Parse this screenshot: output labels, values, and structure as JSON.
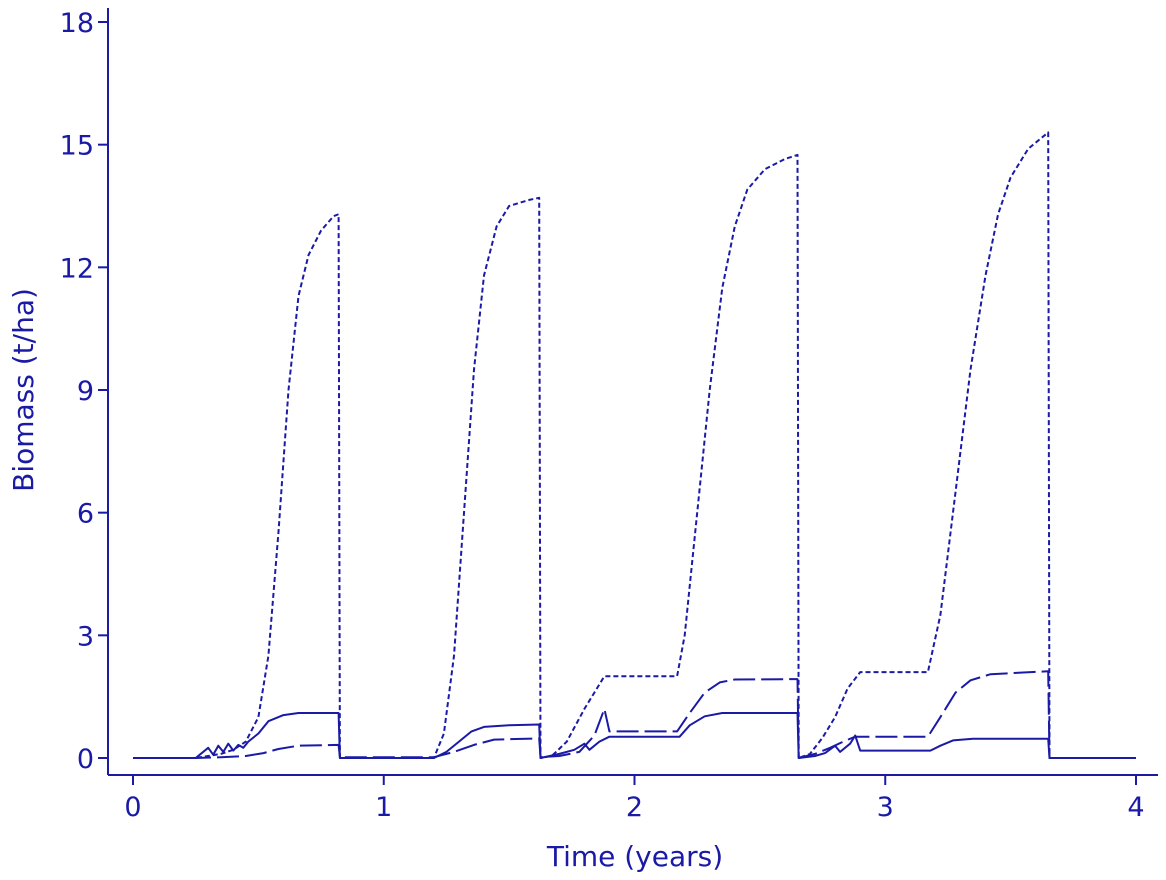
{
  "chart_data": {
    "type": "line",
    "xlabel": "Time (years)",
    "ylabel": "Biomass (t/ha)",
    "xlim": [
      0,
      4
    ],
    "ylim": [
      0,
      18
    ],
    "x_ticks": [
      "0",
      "1",
      "2",
      "3",
      "4"
    ],
    "y_ticks": [
      "0",
      "3",
      "6",
      "9",
      "12",
      "15",
      "18"
    ],
    "grid": false,
    "legend": "none",
    "color": "#1a1aa6",
    "series": [
      {
        "style": "short-dash",
        "points": [
          [
            0,
            0
          ],
          [
            0.25,
            0
          ],
          [
            0.3,
            0.05
          ],
          [
            0.35,
            0.1
          ],
          [
            0.4,
            0.2
          ],
          [
            0.45,
            0.4
          ],
          [
            0.5,
            1.0
          ],
          [
            0.54,
            2.5
          ],
          [
            0.58,
            5.5
          ],
          [
            0.62,
            9.0
          ],
          [
            0.66,
            11.3
          ],
          [
            0.7,
            12.3
          ],
          [
            0.75,
            12.9
          ],
          [
            0.8,
            13.25
          ],
          [
            0.82,
            13.3
          ],
          [
            0.825,
            0
          ],
          [
            1.2,
            0
          ],
          [
            1.24,
            0.6
          ],
          [
            1.28,
            2.5
          ],
          [
            1.32,
            6.0
          ],
          [
            1.36,
            9.5
          ],
          [
            1.4,
            11.8
          ],
          [
            1.45,
            13.0
          ],
          [
            1.5,
            13.5
          ],
          [
            1.58,
            13.65
          ],
          [
            1.62,
            13.7
          ],
          [
            1.625,
            0
          ],
          [
            1.67,
            0.05
          ],
          [
            1.73,
            0.4
          ],
          [
            1.8,
            1.2
          ],
          [
            1.88,
            2.0
          ],
          [
            2.17,
            2.0
          ],
          [
            2.2,
            3.0
          ],
          [
            2.25,
            6.0
          ],
          [
            2.3,
            9.0
          ],
          [
            2.35,
            11.5
          ],
          [
            2.4,
            13.0
          ],
          [
            2.45,
            13.9
          ],
          [
            2.52,
            14.4
          ],
          [
            2.6,
            14.65
          ],
          [
            2.65,
            14.75
          ],
          [
            2.655,
            0
          ],
          [
            2.7,
            0.1
          ],
          [
            2.75,
            0.5
          ],
          [
            2.8,
            1.0
          ],
          [
            2.85,
            1.7
          ],
          [
            2.9,
            2.1
          ],
          [
            3.17,
            2.1
          ],
          [
            3.22,
            3.5
          ],
          [
            3.28,
            6.5
          ],
          [
            3.34,
            9.5
          ],
          [
            3.4,
            11.8
          ],
          [
            3.45,
            13.3
          ],
          [
            3.5,
            14.2
          ],
          [
            3.57,
            14.9
          ],
          [
            3.65,
            15.3
          ],
          [
            3.655,
            0
          ],
          [
            4.0,
            0
          ]
        ]
      },
      {
        "style": "solid",
        "points": [
          [
            0,
            0
          ],
          [
            0.25,
            0
          ],
          [
            0.3,
            0.25
          ],
          [
            0.32,
            0.08
          ],
          [
            0.34,
            0.3
          ],
          [
            0.36,
            0.15
          ],
          [
            0.38,
            0.35
          ],
          [
            0.4,
            0.18
          ],
          [
            0.42,
            0.32
          ],
          [
            0.44,
            0.25
          ],
          [
            0.46,
            0.4
          ],
          [
            0.5,
            0.6
          ],
          [
            0.54,
            0.9
          ],
          [
            0.6,
            1.05
          ],
          [
            0.66,
            1.1
          ],
          [
            0.72,
            1.1
          ],
          [
            0.82,
            1.1
          ],
          [
            0.825,
            0
          ],
          [
            1.2,
            0
          ],
          [
            1.25,
            0.15
          ],
          [
            1.3,
            0.4
          ],
          [
            1.35,
            0.65
          ],
          [
            1.4,
            0.76
          ],
          [
            1.5,
            0.8
          ],
          [
            1.62,
            0.82
          ],
          [
            1.625,
            0
          ],
          [
            1.7,
            0.1
          ],
          [
            1.76,
            0.2
          ],
          [
            1.8,
            0.35
          ],
          [
            1.82,
            0.2
          ],
          [
            1.86,
            0.4
          ],
          [
            1.9,
            0.52
          ],
          [
            2.18,
            0.52
          ],
          [
            2.22,
            0.8
          ],
          [
            2.28,
            1.02
          ],
          [
            2.35,
            1.1
          ],
          [
            2.5,
            1.1
          ],
          [
            2.65,
            1.1
          ],
          [
            2.655,
            0
          ],
          [
            2.72,
            0.05
          ],
          [
            2.76,
            0.12
          ],
          [
            2.8,
            0.3
          ],
          [
            2.82,
            0.15
          ],
          [
            2.86,
            0.35
          ],
          [
            2.88,
            0.55
          ],
          [
            2.9,
            0.18
          ],
          [
            3.18,
            0.18
          ],
          [
            3.22,
            0.3
          ],
          [
            3.27,
            0.43
          ],
          [
            3.35,
            0.47
          ],
          [
            3.65,
            0.47
          ],
          [
            3.655,
            0
          ],
          [
            4.0,
            0
          ]
        ]
      },
      {
        "style": "long-dash",
        "points": [
          [
            0,
            0
          ],
          [
            0.25,
            0
          ],
          [
            0.35,
            0.02
          ],
          [
            0.45,
            0.05
          ],
          [
            0.52,
            0.12
          ],
          [
            0.58,
            0.22
          ],
          [
            0.66,
            0.3
          ],
          [
            0.82,
            0.32
          ],
          [
            0.825,
            0.02
          ],
          [
            1.2,
            0.02
          ],
          [
            1.28,
            0.15
          ],
          [
            1.36,
            0.32
          ],
          [
            1.44,
            0.45
          ],
          [
            1.62,
            0.48
          ],
          [
            1.625,
            0.02
          ],
          [
            1.7,
            0.05
          ],
          [
            1.78,
            0.15
          ],
          [
            1.84,
            0.55
          ],
          [
            1.88,
            1.2
          ],
          [
            1.9,
            0.65
          ],
          [
            2.17,
            0.65
          ],
          [
            2.22,
            1.1
          ],
          [
            2.28,
            1.6
          ],
          [
            2.34,
            1.85
          ],
          [
            2.4,
            1.92
          ],
          [
            2.65,
            1.93
          ],
          [
            2.655,
            0
          ],
          [
            2.72,
            0.1
          ],
          [
            2.78,
            0.25
          ],
          [
            2.84,
            0.42
          ],
          [
            2.88,
            0.52
          ],
          [
            3.17,
            0.52
          ],
          [
            3.22,
            1.0
          ],
          [
            3.28,
            1.6
          ],
          [
            3.34,
            1.9
          ],
          [
            3.42,
            2.05
          ],
          [
            3.65,
            2.12
          ],
          [
            3.655,
            0
          ],
          [
            4.0,
            0
          ]
        ]
      }
    ]
  }
}
